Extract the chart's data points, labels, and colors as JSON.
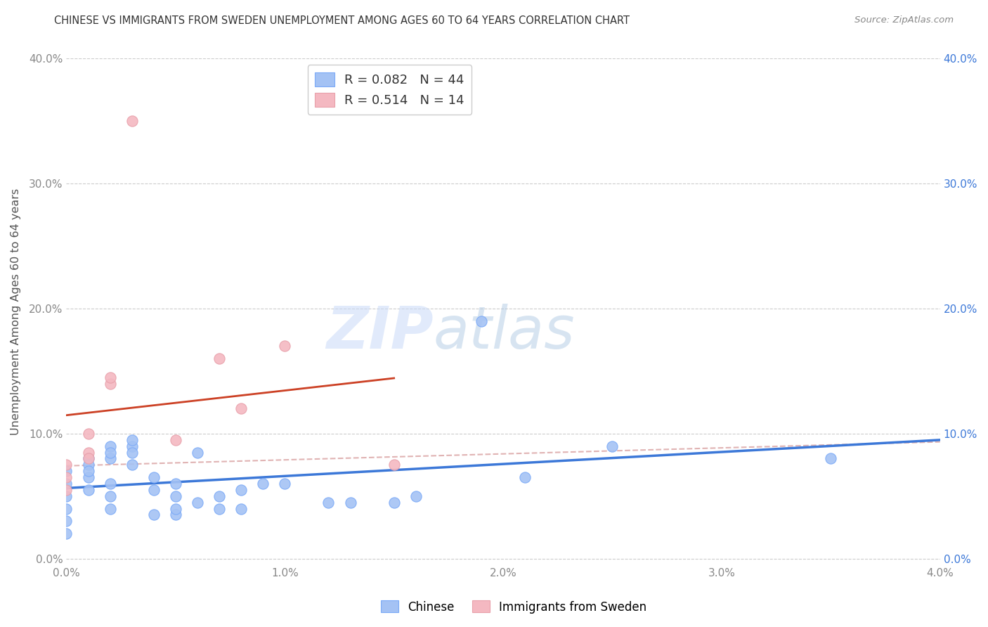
{
  "title": "CHINESE VS IMMIGRANTS FROM SWEDEN UNEMPLOYMENT AMONG AGES 60 TO 64 YEARS CORRELATION CHART",
  "source": "Source: ZipAtlas.com",
  "ylabel": "Unemployment Among Ages 60 to 64 years",
  "x_min": 0.0,
  "x_max": 0.04,
  "y_min": -0.005,
  "y_max": 0.4,
  "x_ticks": [
    0.0,
    0.01,
    0.02,
    0.03,
    0.04
  ],
  "x_tick_labels": [
    "0.0%",
    "1.0%",
    "2.0%",
    "3.0%",
    "4.0%"
  ],
  "y_ticks": [
    0.0,
    0.1,
    0.2,
    0.3,
    0.4
  ],
  "y_tick_labels": [
    "0.0%",
    "10.0%",
    "20.0%",
    "30.0%",
    "40.0%"
  ],
  "chinese_color": "#a4c2f4",
  "sweden_color": "#f4b8c1",
  "chinese_line_color": "#3c78d8",
  "sweden_line_color": "#cc4125",
  "dashed_line_color": "#e06666",
  "legend_chinese_label": "Chinese",
  "legend_sweden_label": "Immigrants from Sweden",
  "R_chinese": 0.082,
  "N_chinese": 44,
  "R_sweden": 0.514,
  "N_sweden": 14,
  "watermark_zip": "ZIP",
  "watermark_atlas": "atlas",
  "chinese_x": [
    0.0,
    0.0,
    0.0,
    0.0,
    0.0,
    0.0,
    0.001,
    0.001,
    0.001,
    0.001,
    0.001,
    0.002,
    0.002,
    0.002,
    0.002,
    0.002,
    0.002,
    0.003,
    0.003,
    0.003,
    0.003,
    0.004,
    0.004,
    0.004,
    0.005,
    0.005,
    0.005,
    0.005,
    0.006,
    0.006,
    0.007,
    0.007,
    0.008,
    0.008,
    0.009,
    0.01,
    0.012,
    0.013,
    0.015,
    0.016,
    0.019,
    0.021,
    0.025,
    0.035
  ],
  "chinese_y": [
    0.06,
    0.05,
    0.04,
    0.07,
    0.03,
    0.02,
    0.055,
    0.065,
    0.08,
    0.075,
    0.07,
    0.05,
    0.06,
    0.04,
    0.09,
    0.08,
    0.085,
    0.09,
    0.075,
    0.085,
    0.095,
    0.055,
    0.065,
    0.035,
    0.05,
    0.06,
    0.035,
    0.04,
    0.085,
    0.045,
    0.05,
    0.04,
    0.055,
    0.04,
    0.06,
    0.06,
    0.045,
    0.045,
    0.045,
    0.05,
    0.19,
    0.065,
    0.09,
    0.08
  ],
  "sweden_x": [
    0.0,
    0.0,
    0.0,
    0.001,
    0.001,
    0.001,
    0.002,
    0.002,
    0.003,
    0.005,
    0.007,
    0.008,
    0.01,
    0.015
  ],
  "sweden_y": [
    0.055,
    0.065,
    0.075,
    0.085,
    0.1,
    0.08,
    0.14,
    0.145,
    0.35,
    0.095,
    0.16,
    0.12,
    0.17,
    0.075
  ]
}
